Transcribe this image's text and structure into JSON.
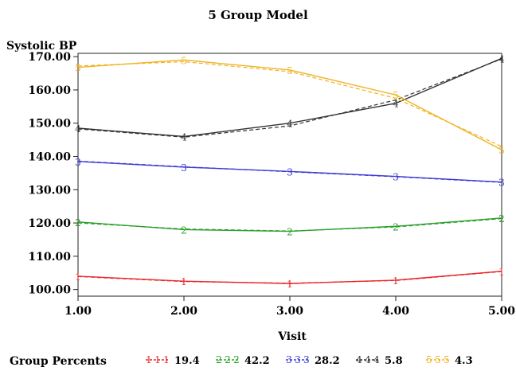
{
  "chart_data": {
    "type": "line",
    "title": "5 Group Model",
    "ylabel": "Systolic BP",
    "xlabel": "Visit",
    "x": [
      1,
      2,
      3,
      4,
      5
    ],
    "x_tick_labels": [
      "1.00",
      "2.00",
      "3.00",
      "4.00",
      "5.00"
    ],
    "xlim": [
      1,
      5
    ],
    "ylim": [
      98,
      171
    ],
    "y_ticks": [
      100,
      110,
      120,
      130,
      140,
      150,
      160,
      170
    ],
    "y_tick_labels": [
      "100.00",
      "110.00",
      "120.00",
      "130.00",
      "140.00",
      "150.00",
      "160.00",
      "170.00"
    ],
    "grid": false,
    "legend": {
      "title": "Group Percents",
      "placement": "bottom"
    },
    "series": [
      {
        "name": "19.4",
        "marker": "1",
        "color": "#e8272a",
        "observed": [
          104.0,
          102.5,
          101.8,
          102.8,
          105.5
        ],
        "estimated": [
          103.9,
          102.4,
          101.9,
          102.7,
          105.4
        ]
      },
      {
        "name": "42.2",
        "marker": "2",
        "color": "#2ca02c",
        "observed": [
          120.3,
          118.0,
          117.5,
          119.0,
          121.5
        ],
        "estimated": [
          120.0,
          118.2,
          117.6,
          118.8,
          121.3
        ]
      },
      {
        "name": "28.2",
        "marker": "3",
        "color": "#3b3bd6",
        "observed": [
          138.5,
          136.8,
          135.5,
          134.0,
          132.3
        ],
        "estimated": [
          138.6,
          136.9,
          135.4,
          133.9,
          132.2
        ]
      },
      {
        "name": "5.8",
        "marker": "4",
        "color": "#333333",
        "observed": [
          148.5,
          146.0,
          150.0,
          156.0,
          169.5
        ],
        "estimated": [
          148.3,
          145.8,
          149.2,
          157.0,
          169.3
        ]
      },
      {
        "name": "4.3",
        "marker": "5",
        "color": "#f0b323",
        "observed": [
          166.8,
          169.0,
          166.0,
          158.5,
          142.0
        ],
        "estimated": [
          167.2,
          168.5,
          165.5,
          157.5,
          143.0
        ]
      }
    ]
  }
}
